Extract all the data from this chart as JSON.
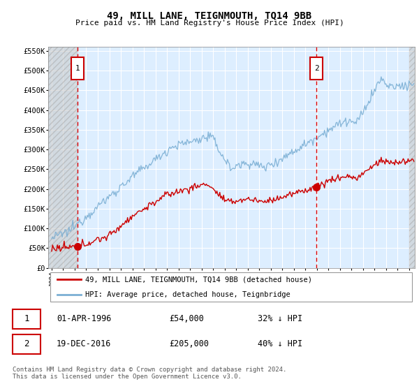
{
  "title": "49, MILL LANE, TEIGNMOUTH, TQ14 9BB",
  "subtitle": "Price paid vs. HM Land Registry's House Price Index (HPI)",
  "hpi_color": "#7bafd4",
  "price_color": "#cc0000",
  "point1_date": "01-APR-1996",
  "point1_price": 54000,
  "point1_label": "32% ↓ HPI",
  "point1_year": 1996.25,
  "point2_date": "19-DEC-2016",
  "point2_price": 205000,
  "point2_label": "40% ↓ HPI",
  "point2_year": 2016.97,
  "ylim_max": 560000,
  "ylim_min": 0,
  "xlim_min": 1993.7,
  "xlim_max": 2025.5,
  "bg_color": "#ddeeff",
  "grid_color": "#ffffff",
  "footer": "Contains HM Land Registry data © Crown copyright and database right 2024.\nThis data is licensed under the Open Government Licence v3.0.",
  "legend_label1": "49, MILL LANE, TEIGNMOUTH, TQ14 9BB (detached house)",
  "legend_label2": "HPI: Average price, detached house, Teignbridge"
}
